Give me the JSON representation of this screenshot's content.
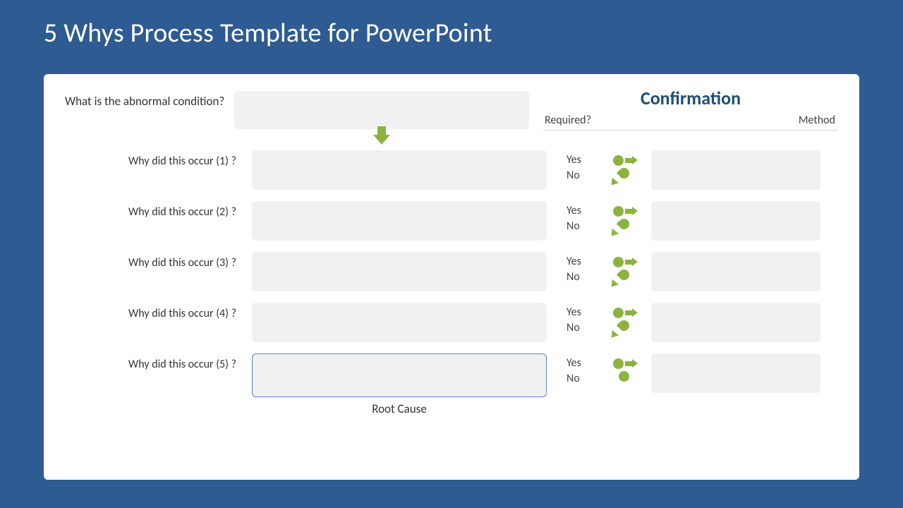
{
  "colors": {
    "slide_bg": "#2f5b93",
    "panel_bg": "#ffffff",
    "box_fill": "#f1f1f1",
    "accent_green": "#8cb33f",
    "confirm_title": "#1f4e79",
    "selected_border": "#6083b6",
    "divider": "#d0d0d0",
    "text": "#333333"
  },
  "title": "5 Whys Process Template for PowerPoint",
  "abnormal_question": "What is the abnormal condition?",
  "confirmation_title": "Confirmation",
  "required_header": "Required?",
  "method_header": "Method",
  "yes_label": "Yes",
  "no_label": "No",
  "root_cause_label": "Root Cause",
  "whys": [
    {
      "label": "Why did this occur (1) ?",
      "terminal": false
    },
    {
      "label": "Why did this occur (2) ?",
      "terminal": false
    },
    {
      "label": "Why did this occur (3) ?",
      "terminal": false
    },
    {
      "label": "Why did this occur (4) ?",
      "terminal": false
    },
    {
      "label": "Why did this occur (5) ?",
      "terminal": true
    }
  ]
}
